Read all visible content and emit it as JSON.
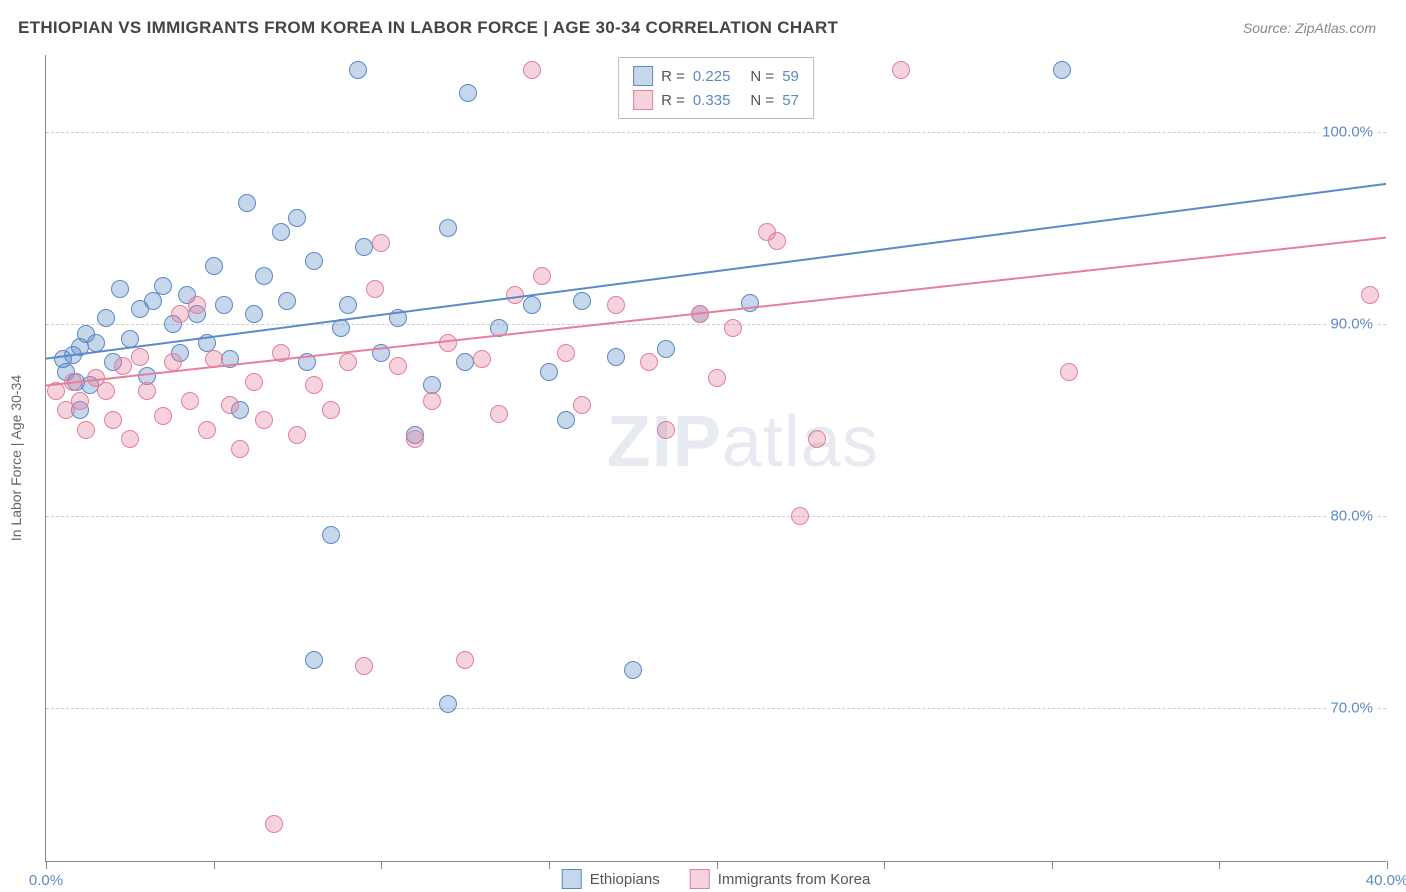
{
  "header": {
    "title": "ETHIOPIAN VS IMMIGRANTS FROM KOREA IN LABOR FORCE | AGE 30-34 CORRELATION CHART",
    "source": "Source: ZipAtlas.com"
  },
  "chart": {
    "type": "scatter",
    "ylabel": "In Labor Force | Age 30-34",
    "xlim": [
      0,
      40
    ],
    "ylim": [
      62,
      104
    ],
    "background_color": "#ffffff",
    "grid_color": "#cccccc",
    "axis_color": "#888888",
    "tick_label_color": "#5b8ac7",
    "tick_fontsize": 15,
    "ylabel_color": "#666666",
    "xticks": [
      0,
      5,
      10,
      15,
      20,
      25,
      30,
      35,
      40
    ],
    "xtick_labels": {
      "0": "0.0%",
      "40": "40.0%"
    },
    "yticks": [
      70,
      80,
      90,
      100
    ],
    "ytick_labels": [
      "70.0%",
      "80.0%",
      "90.0%",
      "100.0%"
    ],
    "watermark": "ZIPatlas",
    "marker_radius": 8,
    "marker_fill_opacity": 0.35,
    "marker_stroke_opacity": 0.9,
    "series": [
      {
        "name": "Ethiopians",
        "color": "#5b8ac7",
        "fill": "rgba(91,138,199,0.35)",
        "stroke": "#5b8ac7",
        "R": "0.225",
        "N": "59",
        "trend": {
          "x1": 0,
          "y1": 88.2,
          "x2": 40,
          "y2": 97.3,
          "width": 2
        },
        "points": [
          [
            0.5,
            88.2
          ],
          [
            0.6,
            87.5
          ],
          [
            0.8,
            88.4
          ],
          [
            0.9,
            87.0
          ],
          [
            1.0,
            88.8
          ],
          [
            1.2,
            89.5
          ],
          [
            1.3,
            86.8
          ],
          [
            1.5,
            89.0
          ],
          [
            1.8,
            90.3
          ],
          [
            2.0,
            88.0
          ],
          [
            2.2,
            91.8
          ],
          [
            2.5,
            89.2
          ],
          [
            2.8,
            90.8
          ],
          [
            3.0,
            87.3
          ],
          [
            3.2,
            91.2
          ],
          [
            3.5,
            92.0
          ],
          [
            3.8,
            90.0
          ],
          [
            4.0,
            88.5
          ],
          [
            4.2,
            91.5
          ],
          [
            4.5,
            90.5
          ],
          [
            4.8,
            89.0
          ],
          [
            5.0,
            93.0
          ],
          [
            5.3,
            91.0
          ],
          [
            5.5,
            88.2
          ],
          [
            5.8,
            85.5
          ],
          [
            6.0,
            96.3
          ],
          [
            6.2,
            90.5
          ],
          [
            6.5,
            92.5
          ],
          [
            7.0,
            94.8
          ],
          [
            7.2,
            91.2
          ],
          [
            7.5,
            95.5
          ],
          [
            7.8,
            88.0
          ],
          [
            8.0,
            93.3
          ],
          [
            8.5,
            79.0
          ],
          [
            8.8,
            89.8
          ],
          [
            9.0,
            91.0
          ],
          [
            9.3,
            103.2
          ],
          [
            9.5,
            94.0
          ],
          [
            8.0,
            72.5
          ],
          [
            10.0,
            88.5
          ],
          [
            10.5,
            90.3
          ],
          [
            11.0,
            84.2
          ],
          [
            11.5,
            86.8
          ],
          [
            12.0,
            95.0
          ],
          [
            12.5,
            88.0
          ],
          [
            12.6,
            102.0
          ],
          [
            12.0,
            70.2
          ],
          [
            13.5,
            89.8
          ],
          [
            14.5,
            91.0
          ],
          [
            15.0,
            87.5
          ],
          [
            15.5,
            85.0
          ],
          [
            16.0,
            91.2
          ],
          [
            17.0,
            88.3
          ],
          [
            17.5,
            72.0
          ],
          [
            18.5,
            88.7
          ],
          [
            19.5,
            90.5
          ],
          [
            21.0,
            91.1
          ],
          [
            30.3,
            103.2
          ],
          [
            1.0,
            85.5
          ]
        ]
      },
      {
        "name": "Immigrants from Korea",
        "color": "#e57f9c",
        "fill": "rgba(229,127,156,0.35)",
        "stroke": "#e57f9c",
        "R": "0.335",
        "N": "57",
        "trend": {
          "x1": 0,
          "y1": 86.8,
          "x2": 40,
          "y2": 94.5,
          "width": 2
        },
        "points": [
          [
            0.3,
            86.5
          ],
          [
            0.6,
            85.5
          ],
          [
            0.8,
            87.0
          ],
          [
            1.0,
            86.0
          ],
          [
            1.2,
            84.5
          ],
          [
            1.5,
            87.2
          ],
          [
            1.8,
            86.5
          ],
          [
            2.0,
            85.0
          ],
          [
            2.3,
            87.8
          ],
          [
            2.5,
            84.0
          ],
          [
            2.8,
            88.3
          ],
          [
            3.0,
            86.5
          ],
          [
            3.5,
            85.2
          ],
          [
            3.8,
            88.0
          ],
          [
            4.0,
            90.5
          ],
          [
            4.3,
            86.0
          ],
          [
            4.8,
            84.5
          ],
          [
            5.0,
            88.2
          ],
          [
            5.5,
            85.8
          ],
          [
            5.8,
            83.5
          ],
          [
            6.2,
            87.0
          ],
          [
            6.5,
            85.0
          ],
          [
            7.0,
            88.5
          ],
          [
            7.5,
            84.2
          ],
          [
            8.0,
            86.8
          ],
          [
            8.5,
            85.5
          ],
          [
            9.0,
            88.0
          ],
          [
            9.5,
            72.2
          ],
          [
            9.8,
            91.8
          ],
          [
            10.0,
            94.2
          ],
          [
            10.5,
            87.8
          ],
          [
            11.0,
            84.0
          ],
          [
            11.5,
            86.0
          ],
          [
            12.0,
            89.0
          ],
          [
            12.5,
            72.5
          ],
          [
            13.0,
            88.2
          ],
          [
            13.5,
            85.3
          ],
          [
            14.0,
            91.5
          ],
          [
            14.5,
            103.2
          ],
          [
            14.8,
            92.5
          ],
          [
            15.5,
            88.5
          ],
          [
            16.0,
            85.8
          ],
          [
            17.0,
            91.0
          ],
          [
            18.0,
            88.0
          ],
          [
            18.5,
            84.5
          ],
          [
            19.5,
            90.5
          ],
          [
            20.0,
            87.2
          ],
          [
            20.5,
            89.8
          ],
          [
            21.5,
            94.8
          ],
          [
            21.8,
            94.3
          ],
          [
            22.5,
            80.0
          ],
          [
            23.0,
            84.0
          ],
          [
            25.5,
            103.2
          ],
          [
            30.5,
            87.5
          ],
          [
            39.5,
            91.5
          ],
          [
            4.5,
            91.0
          ],
          [
            6.8,
            64.0
          ]
        ]
      }
    ],
    "legend_bottom": [
      {
        "label": "Ethiopians",
        "color": "#5b8ac7",
        "fill": "rgba(91,138,199,0.35)"
      },
      {
        "label": "Immigrants from Korea",
        "color": "#e57f9c",
        "fill": "rgba(229,127,156,0.35)"
      }
    ]
  }
}
